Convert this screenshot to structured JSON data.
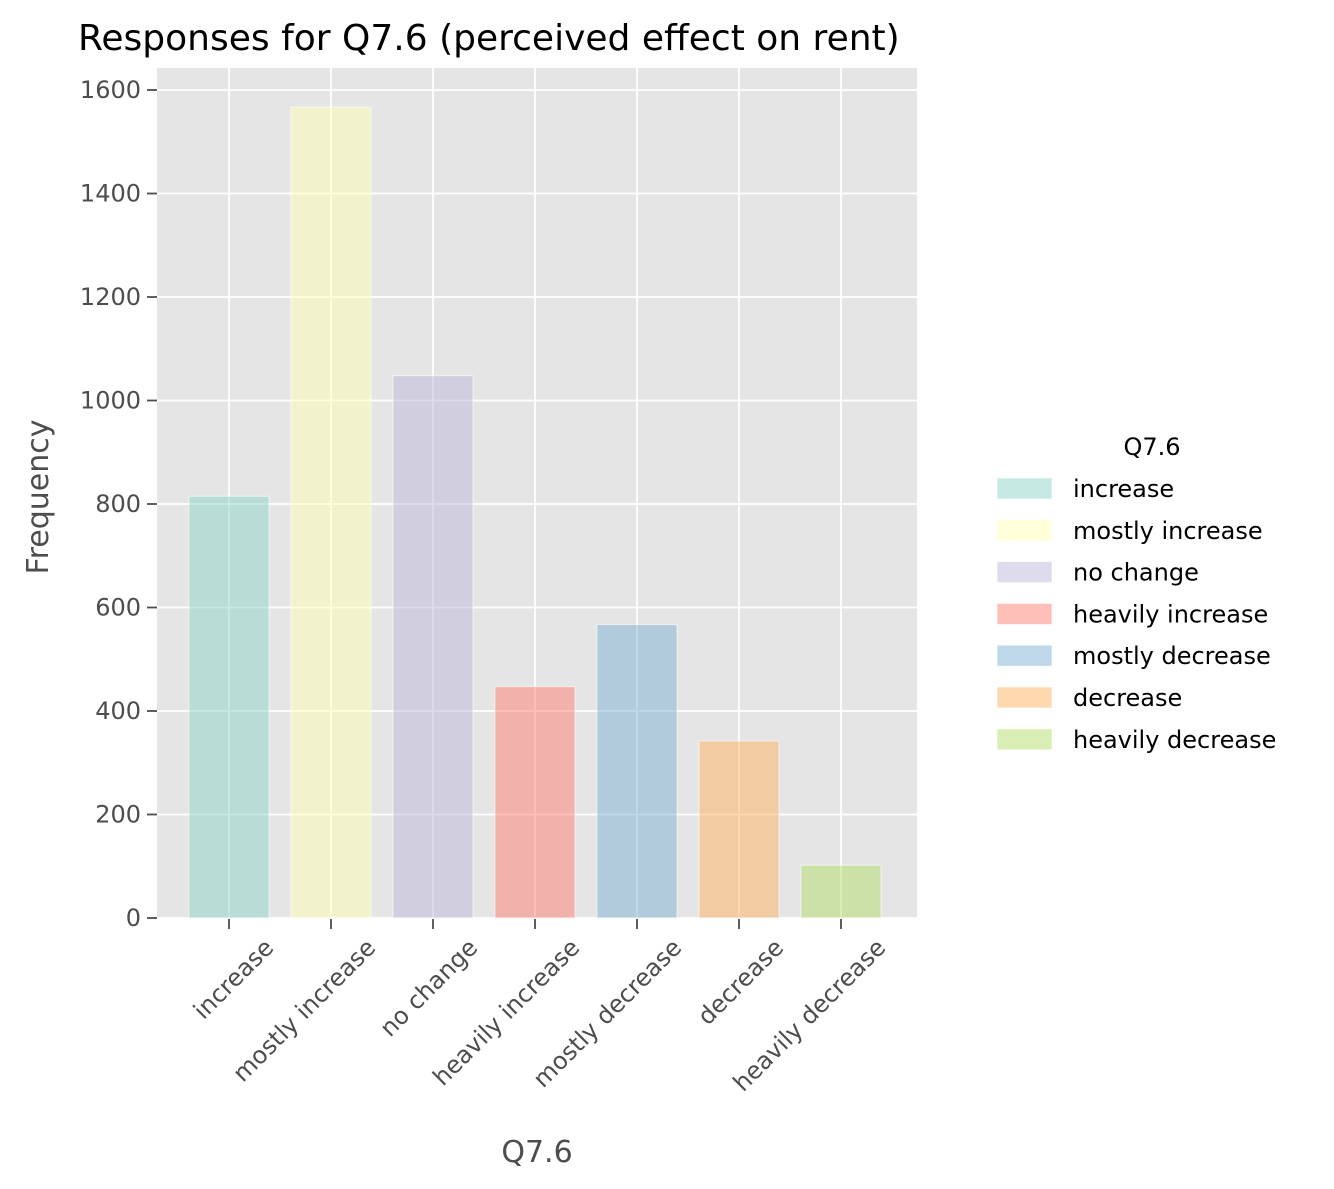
{
  "chart_data": {
    "type": "bar",
    "title": "Responses for Q7.6 (perceived effect on rent)",
    "xlabel": "Q7.6",
    "ylabel": "Frequency",
    "categories": [
      "increase",
      "mostly increase",
      "no change",
      "heavily increase",
      "mostly decrease",
      "decrease",
      "heavily decrease"
    ],
    "values": [
      815,
      1567,
      1048,
      447,
      567,
      342,
      102
    ],
    "ylim": [
      0,
      1650
    ],
    "yticks": [
      "0",
      "200",
      "400",
      "600",
      "800",
      "1000",
      "1200",
      "1400",
      "1600"
    ],
    "grid": true,
    "legend": {
      "title": "Q7.6",
      "placement": "right",
      "entries": [
        "increase",
        "mostly increase",
        "no change",
        "heavily increase",
        "mostly decrease",
        "decrease",
        "heavily decrease"
      ]
    },
    "colors": [
      "#8dd3c7",
      "#ffffb3",
      "#bebada",
      "#fb8072",
      "#80b1d3",
      "#fdb462",
      "#b3de69"
    ],
    "bar_opacity": 0.5,
    "panel_background": "#e5e5e5",
    "grid_color": "#ffffff"
  }
}
